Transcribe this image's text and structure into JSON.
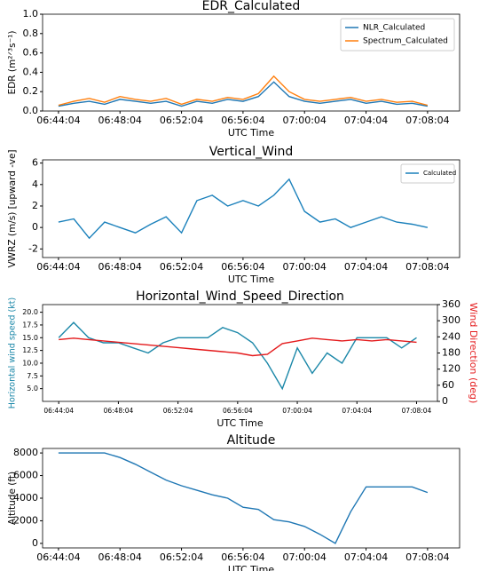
{
  "chart_data": [
    {
      "type": "line",
      "title": "EDR_Calculated",
      "xlabel": "UTC Time",
      "ylabel": "EDR (m²ᐟ³s⁻¹)",
      "x": [
        "06:44:04",
        "06:45:04",
        "06:46:04",
        "06:47:04",
        "06:48:04",
        "06:49:04",
        "06:50:04",
        "06:51:04",
        "06:52:04",
        "06:53:04",
        "06:54:04",
        "06:55:04",
        "06:56:04",
        "06:57:04",
        "06:58:04",
        "06:59:04",
        "07:00:04",
        "07:01:04",
        "07:02:04",
        "07:03:04",
        "07:04:04",
        "07:05:04",
        "07:06:04",
        "07:07:04",
        "07:08:04"
      ],
      "series": [
        {
          "name": "NLR_Calculated",
          "color": "#1f77b4",
          "values": [
            0.05,
            0.08,
            0.1,
            0.07,
            0.12,
            0.1,
            0.08,
            0.1,
            0.05,
            0.1,
            0.08,
            0.12,
            0.1,
            0.15,
            0.3,
            0.15,
            0.1,
            0.08,
            0.1,
            0.12,
            0.08,
            0.1,
            0.07,
            0.08,
            0.05
          ]
        },
        {
          "name": "Spectrum_Calculated",
          "color": "#ff7f0e",
          "values": [
            0.06,
            0.1,
            0.13,
            0.09,
            0.15,
            0.12,
            0.1,
            0.13,
            0.07,
            0.12,
            0.1,
            0.14,
            0.12,
            0.18,
            0.36,
            0.2,
            0.12,
            0.1,
            0.12,
            0.14,
            0.1,
            0.12,
            0.09,
            0.1,
            0.06
          ]
        }
      ],
      "xlim": [
        "06:43:02",
        "07:10:09"
      ],
      "xticks": [
        "06:44:04",
        "06:48:04",
        "06:52:04",
        "06:56:04",
        "07:00:04",
        "07:04:04",
        "07:08:04"
      ],
      "ylim": [
        0,
        1
      ],
      "yticks": [
        {
          "value": 0,
          "label": "0.0"
        },
        {
          "value": 0.2,
          "label": "0.2"
        },
        {
          "value": 0.4,
          "label": "0.4"
        },
        {
          "value": 0.6,
          "label": "0.6"
        },
        {
          "value": 0.8,
          "label": "0.8"
        },
        {
          "value": 1,
          "label": "1.0"
        }
      ],
      "legend": "upper right"
    },
    {
      "type": "line",
      "title": "Vertical_Wind",
      "xlabel": "UTC Time",
      "ylabel": "VWRZ (m/s) [upward -ve]",
      "x": [
        "06:44:04",
        "06:45:04",
        "06:46:04",
        "06:47:04",
        "06:48:04",
        "06:49:04",
        "06:50:04",
        "06:51:04",
        "06:52:04",
        "06:53:04",
        "06:54:04",
        "06:55:04",
        "06:56:04",
        "06:57:04",
        "06:58:04",
        "06:59:04",
        "07:00:04",
        "07:01:04",
        "07:02:04",
        "07:03:04",
        "07:04:04",
        "07:05:04",
        "07:06:04",
        "07:07:04",
        "07:08:04"
      ],
      "series": [
        {
          "name": "Calculated",
          "color": "#1a80bb",
          "values": [
            0.5,
            0.8,
            -1,
            0.5,
            0,
            -0.5,
            0.3,
            1,
            -0.5,
            2.5,
            3,
            2,
            2.5,
            2,
            3,
            4.5,
            1.5,
            0.5,
            0.8,
            0,
            0.5,
            1,
            0.5,
            0.3,
            0
          ]
        }
      ],
      "xlim": [
        "06:43:02",
        "07:10:09"
      ],
      "xticks": [
        "06:44:04",
        "06:48:04",
        "06:52:04",
        "06:56:04",
        "07:00:04",
        "07:04:04",
        "07:08:04"
      ],
      "ylim": [
        -2.8,
        6.3
      ],
      "yticks": [
        -2,
        0,
        2,
        4,
        6
      ],
      "legend": "upper right"
    },
    {
      "type": "line",
      "title": "Horizontal_Wind_Speed_Direction",
      "xlabel": "UTC Time",
      "ylabel": "Horizontal wind speed (kt)",
      "y2label": "Wind Direction (deg)",
      "x": [
        "06:44:04",
        "06:45:04",
        "06:46:04",
        "06:47:04",
        "06:48:04",
        "06:49:04",
        "06:50:04",
        "06:51:04",
        "06:52:04",
        "06:53:04",
        "06:54:04",
        "06:55:04",
        "06:56:04",
        "06:57:04",
        "06:58:04",
        "06:59:04",
        "07:00:04",
        "07:01:04",
        "07:02:04",
        "07:03:04",
        "07:04:04",
        "07:05:04",
        "07:06:04",
        "07:07:04",
        "07:08:04"
      ],
      "series": [
        {
          "name": "Horizontal wind speed",
          "color": "#1a87a8",
          "values": [
            15,
            18,
            15,
            14,
            14,
            13,
            12,
            14,
            15,
            15,
            15,
            17,
            16,
            14,
            10,
            5,
            13,
            8,
            12,
            10,
            15,
            15,
            15,
            13,
            15
          ]
        },
        {
          "name": "Wind Direction",
          "color": "#e41a1c",
          "axis": "y2",
          "values": [
            230,
            235,
            230,
            225,
            220,
            215,
            210,
            205,
            200,
            195,
            190,
            185,
            180,
            170,
            175,
            215,
            225,
            235,
            230,
            225,
            230,
            225,
            230,
            225,
            220
          ]
        }
      ],
      "xlim": [
        "06:42:59",
        "07:09:28"
      ],
      "xticks": [
        "06:44:04",
        "06:48:04",
        "06:52:04",
        "06:56:04",
        "07:00:04",
        "07:04:04",
        "07:08:04"
      ],
      "ylim": [
        2.5,
        21.5
      ],
      "yticks": [
        {
          "value": 5,
          "label": "5.0"
        },
        {
          "value": 7.5,
          "label": "7.5"
        },
        {
          "value": 10,
          "label": "10.0"
        },
        {
          "value": 12.5,
          "label": "12.5"
        },
        {
          "value": 15,
          "label": "15.0"
        },
        {
          "value": 17.5,
          "label": "17.5"
        },
        {
          "value": 20,
          "label": "20.0"
        }
      ],
      "y2lim": [
        0,
        360
      ],
      "y2ticks": [
        0,
        60,
        120,
        180,
        240,
        300,
        360
      ]
    },
    {
      "type": "line",
      "title": "Altitude",
      "xlabel": "UTC Time",
      "ylabel": "Altitude (ft)",
      "x": [
        "06:44:04",
        "06:45:04",
        "06:46:04",
        "06:47:04",
        "06:48:04",
        "06:49:04",
        "06:50:04",
        "06:51:04",
        "06:52:04",
        "06:53:04",
        "06:54:04",
        "06:55:04",
        "06:56:04",
        "06:57:04",
        "06:58:04",
        "06:59:04",
        "07:00:04",
        "07:01:04",
        "07:02:04",
        "07:03:04",
        "07:04:04",
        "07:05:04",
        "07:06:04",
        "07:07:04",
        "07:08:04"
      ],
      "series": [
        {
          "name": "Altitude",
          "color": "#1f77b4",
          "values": [
            8000,
            8000,
            8000,
            8000,
            7600,
            7000,
            6300,
            5600,
            5100,
            4700,
            4300,
            4000,
            3200,
            3000,
            2100,
            1900,
            1500,
            800,
            0,
            2800,
            5000,
            5000,
            5000,
            5000,
            4500
          ]
        }
      ],
      "xlim": [
        "06:43:02",
        "07:10:09"
      ],
      "xticks": [
        "06:44:04",
        "06:48:04",
        "06:52:04",
        "06:56:04",
        "07:00:04",
        "07:04:04",
        "07:08:04"
      ],
      "ylim": [
        -400,
        8400
      ],
      "yticks": [
        0,
        2000,
        4000,
        6000,
        8000
      ]
    }
  ]
}
